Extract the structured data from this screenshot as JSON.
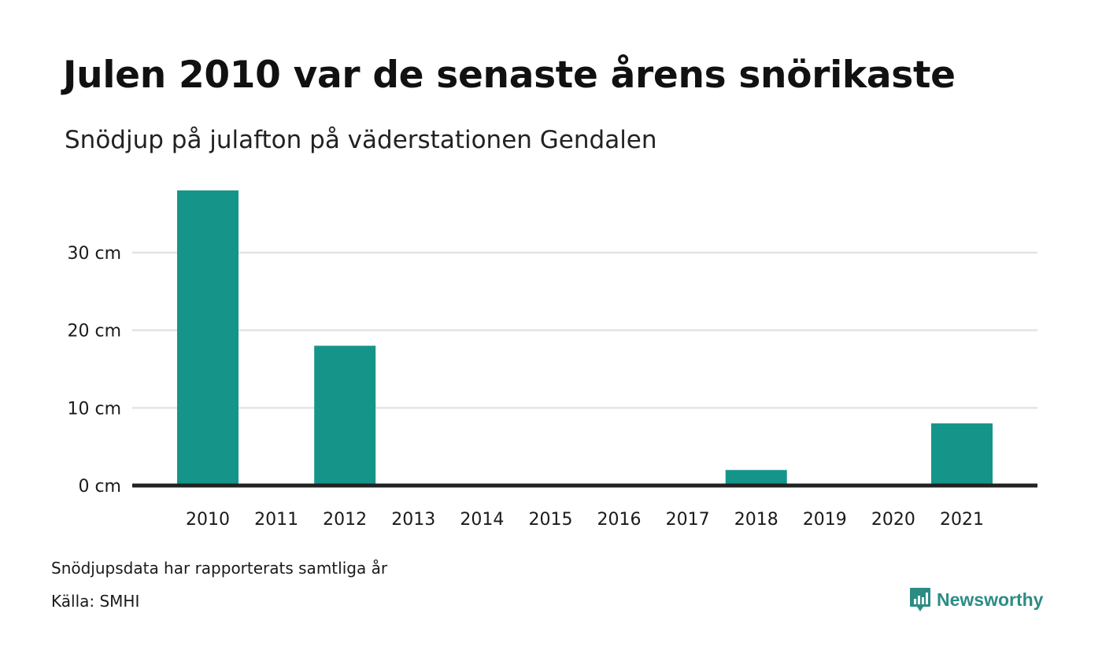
{
  "header": {
    "title": "Julen 2010 var de senaste årens snörikaste",
    "subtitle": "Snödjup på julafton på väderstationen Gendalen"
  },
  "chart_data": {
    "type": "bar",
    "categories": [
      "2010",
      "2011",
      "2012",
      "2013",
      "2014",
      "2015",
      "2016",
      "2017",
      "2018",
      "2019",
      "2020",
      "2021"
    ],
    "values": [
      38,
      0,
      18,
      0,
      0,
      0,
      0,
      0,
      2,
      0,
      0,
      8
    ],
    "unit": "cm",
    "ylim": [
      0,
      38
    ],
    "yticks": [
      0,
      10,
      20,
      30
    ],
    "ytick_labels": [
      "0 cm",
      "10 cm",
      "20 cm",
      "30 cm"
    ],
    "grid": true,
    "legend": "none",
    "bar_color": "#15958a",
    "grid_color": "#e3e3e3",
    "axis_color": "#222222"
  },
  "footer": {
    "note": "Snödjupsdata har rapporterats samtliga år",
    "source": "Källa: SMHI",
    "brand": "Newsworthy",
    "brand_icon": "newsworthy-logo-icon",
    "brand_color": "#2c8c84"
  }
}
